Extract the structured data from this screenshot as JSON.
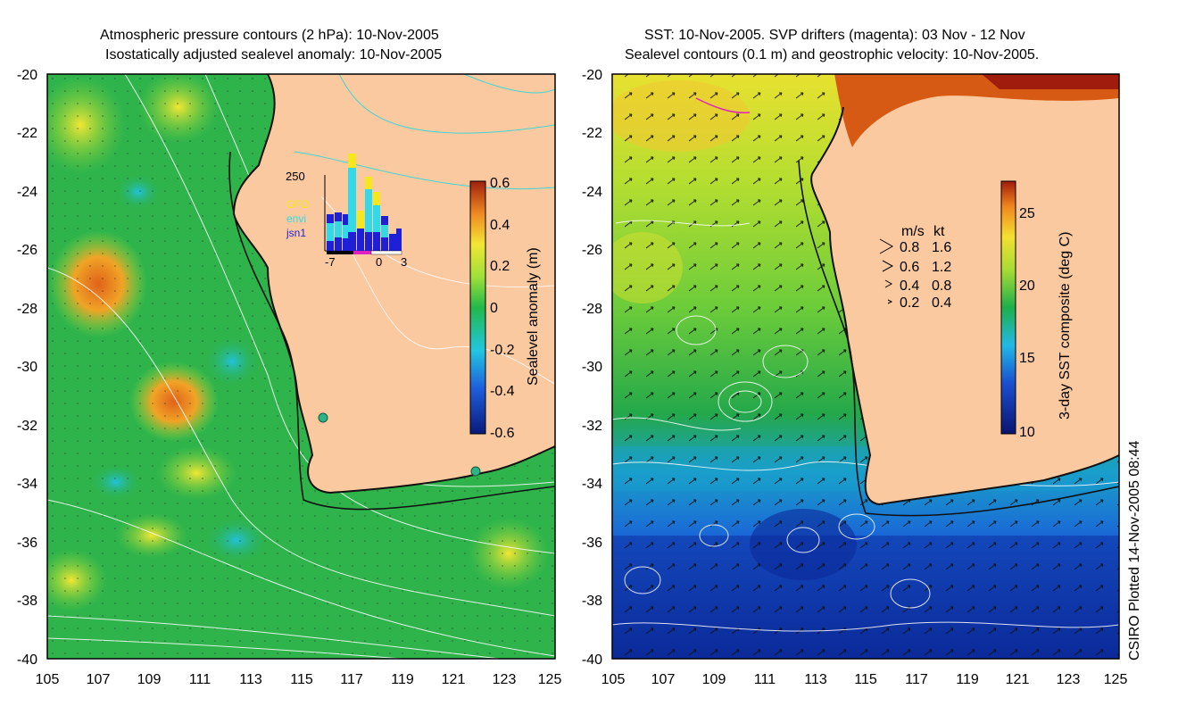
{
  "left_panel": {
    "title_line1": "Atmospheric pressure contours (2 hPa): 10-Nov-2005",
    "title_line2": "Isostatically adjusted sealevel anomaly: 10-Nov-2005",
    "colorbar": {
      "label": "Sealevel anomaly (m)",
      "ticks": [
        "0.6",
        "0.4",
        "0.2",
        "0",
        "-0.2",
        "-0.4",
        "-0.6"
      ]
    },
    "inset_histogram": {
      "ymax_label": "250",
      "legend": [
        {
          "name": "GFO",
          "color": "#f5e61e"
        },
        {
          "name": "envi",
          "color": "#33d9e6"
        },
        {
          "name": "jsn1",
          "color": "#1f1fd6"
        }
      ],
      "x_ticks": [
        "-7",
        "0",
        "3"
      ]
    }
  },
  "right_panel": {
    "title_line1": "SST: 10-Nov-2005. SVP drifters (magenta): 03 Nov - 12 Nov",
    "title_line2": "Sealevel contours (0.1 m) and geostrophic velocity: 10-Nov-2005.",
    "colorbar": {
      "label": "3-day SST composite (deg C)",
      "ticks": [
        "25",
        "20",
        "15",
        "10"
      ]
    },
    "velocity_key": {
      "headers": [
        "m/s",
        "kt"
      ],
      "rows": [
        {
          "ms": "0.8",
          "kt": "1.6"
        },
        {
          "ms": "0.6",
          "kt": "1.2"
        },
        {
          "ms": "0.4",
          "kt": "0.8"
        },
        {
          "ms": "0.2",
          "kt": "0.4"
        }
      ]
    }
  },
  "axes": {
    "lat_ticks": [
      "-20",
      "-22",
      "-24",
      "-26",
      "-28",
      "-30",
      "-32",
      "-34",
      "-36",
      "-38",
      "-40"
    ],
    "lon_ticks": [
      "105",
      "107",
      "109",
      "111",
      "113",
      "115",
      "117",
      "119",
      "121",
      "123",
      "125"
    ]
  },
  "credit": "CSIRO Plotted 14-Nov-2005 08:44",
  "colors": {
    "land": "#fbc9a0",
    "coast": "#111111",
    "contour": "#ffffff"
  }
}
